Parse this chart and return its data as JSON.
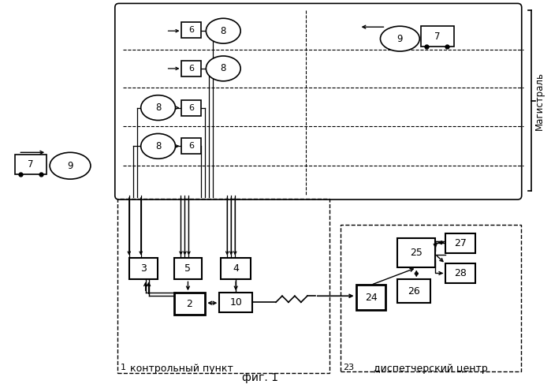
{
  "title": "фиг. 1",
  "label_kontrol": "контрольный пункт",
  "label_dispetch": "диспетчерский центр",
  "label_magistral": "Магистраль",
  "bg": "#ffffff"
}
